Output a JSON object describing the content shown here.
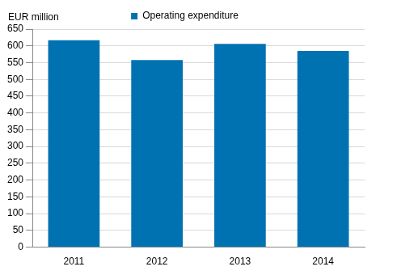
{
  "chart_data": {
    "type": "bar",
    "y_label": "EUR million",
    "categories": [
      "2011",
      "2012",
      "2013",
      "2014"
    ],
    "series": [
      {
        "name": "Operating expenditure",
        "color": "#0072b2",
        "values": [
          617,
          558,
          606,
          585
        ]
      }
    ],
    "ylim": [
      0,
      650
    ],
    "yticks": [
      0,
      50,
      100,
      150,
      200,
      250,
      300,
      350,
      400,
      450,
      500,
      550,
      600,
      650
    ],
    "grid": true,
    "legend": "top"
  }
}
